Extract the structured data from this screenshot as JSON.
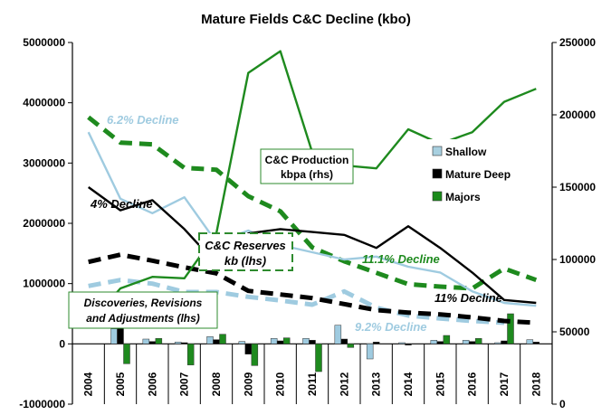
{
  "chart_data": {
    "type": "combo-bar-line",
    "title": "Mature Fields C&C Decline (kbo)",
    "years": [
      "2004",
      "2005",
      "2006",
      "2007",
      "2008",
      "2009",
      "2010",
      "2011",
      "2012",
      "2013",
      "2014",
      "2015",
      "2016",
      "2017",
      "2018"
    ],
    "y_left": {
      "min": -1000000,
      "max": 5000000,
      "step": 1000000,
      "ticks": [
        "-1000000",
        "0",
        "1000000",
        "2000000",
        "3000000",
        "4000000",
        "5000000"
      ]
    },
    "y_right": {
      "min": 0,
      "max": 250000,
      "step": 50000,
      "ticks": [
        "0",
        "50000",
        "100000",
        "150000",
        "200000",
        "250000"
      ]
    },
    "grid": false,
    "legend": {
      "position": "right-middle",
      "items": [
        {
          "label": "Shallow",
          "color": "#a8d0e0"
        },
        {
          "label": "Mature Deep",
          "color": "#000000"
        },
        {
          "label": "Majors",
          "color": "#1a8a1a"
        }
      ]
    },
    "colors": {
      "shallow": "#9fcbe0",
      "deep": "#000000",
      "majors": "#1e8a1e"
    },
    "bars_discoveries": {
      "axis": "left",
      "series": [
        {
          "key": "shallow",
          "name": "Shallow",
          "values": [
            0,
            250000,
            80000,
            30000,
            120000,
            40000,
            90000,
            90000,
            310000,
            -250000,
            20000,
            60000,
            60000,
            20000,
            70000
          ]
        },
        {
          "key": "deep",
          "name": "Mature Deep",
          "values": [
            0,
            260000,
            40000,
            20000,
            70000,
            -170000,
            50000,
            60000,
            80000,
            30000,
            -20000,
            40000,
            40000,
            50000,
            30000
          ]
        },
        {
          "key": "majors",
          "name": "Majors",
          "values": [
            0,
            -330000,
            90000,
            -350000,
            160000,
            -360000,
            100000,
            -460000,
            -60000,
            0,
            0,
            140000,
            90000,
            500000,
            0
          ]
        }
      ]
    },
    "production": {
      "axis": "right",
      "series": [
        {
          "key": "shallow",
          "name": "Shallow",
          "values": [
            188000,
            142000,
            132000,
            143000,
            112000,
            120000,
            110000,
            105000,
            100000,
            102000,
            95000,
            91000,
            78000,
            70000,
            68000
          ]
        },
        {
          "key": "deep",
          "name": "Mature Deep",
          "values": [
            150000,
            134000,
            141000,
            121000,
            97000,
            118000,
            121000,
            119000,
            117000,
            108000,
            123000,
            108000,
            91000,
            72000,
            70000
          ]
        },
        {
          "key": "majors",
          "name": "Majors",
          "values": [
            55000,
            80000,
            88000,
            87000,
            118000,
            229000,
            244000,
            174000,
            165000,
            163000,
            190000,
            180000,
            188000,
            209000,
            218000
          ]
        }
      ]
    },
    "reserves": {
      "axis": "left",
      "series": [
        {
          "key": "shallow",
          "name": "Shallow",
          "values": [
            960000,
            1060000,
            1000000,
            860000,
            860000,
            780000,
            720000,
            650000,
            870000,
            600000,
            470000,
            420000,
            380000,
            350000,
            null
          ]
        },
        {
          "key": "deep",
          "name": "Mature Deep",
          "values": [
            1360000,
            1480000,
            1380000,
            1270000,
            1170000,
            880000,
            820000,
            760000,
            660000,
            560000,
            520000,
            490000,
            440000,
            380000,
            350000
          ]
        },
        {
          "key": "majors",
          "name": "Majors",
          "values": [
            3760000,
            3340000,
            3310000,
            2920000,
            2890000,
            2450000,
            2200000,
            1600000,
            1370000,
            1180000,
            990000,
            950000,
            920000,
            1250000,
            1060000
          ]
        }
      ]
    },
    "annotations": [
      {
        "text": "6.2% Decline",
        "color": "#9fcbe0"
      },
      {
        "text": "4% Decline",
        "color": "#000000"
      },
      {
        "text": "11.1% Decline",
        "color": "#1e8a1e"
      },
      {
        "text": "11% Decline",
        "color": "#000000"
      },
      {
        "text": "9.2% Decline",
        "color": "#9fcbe0"
      }
    ],
    "boxes": {
      "production": [
        "C&C Production",
        "kbpa (rhs)"
      ],
      "reserves": [
        "C&C Reserves",
        "kb (lhs)"
      ],
      "discoveries": [
        "Discoveries, Revisions",
        "and Adjustments (lhs)"
      ]
    }
  }
}
